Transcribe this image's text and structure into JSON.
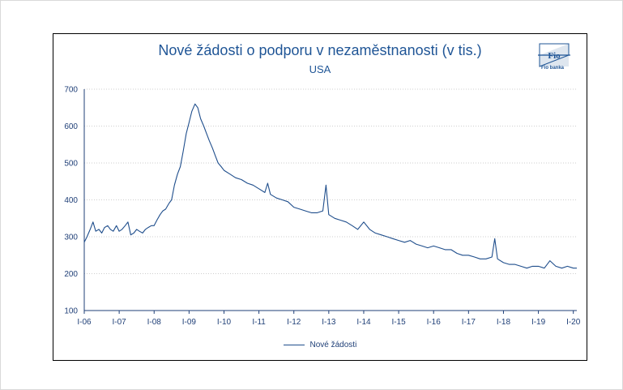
{
  "chart_data": {
    "type": "line",
    "title": "Nové žádosti o podporu v nezaměstnanosti (v tis.)",
    "subtitle": "USA",
    "xlabel": "",
    "ylabel": "",
    "ylim": [
      100,
      700
    ],
    "yticks": [
      100,
      200,
      300,
      400,
      500,
      600,
      700
    ],
    "xticks": [
      "I-06",
      "I-07",
      "I-08",
      "I-09",
      "I-10",
      "I-11",
      "I-12",
      "I-13",
      "I-14",
      "I-15",
      "I-16",
      "I-17",
      "I-18",
      "I-19",
      "I-20"
    ],
    "grid": "horizontal-dotted",
    "legend": "bottom",
    "series": [
      {
        "name": "Nové žádosti",
        "color": "#1f4e8c",
        "x": [
          2006.0,
          2006.08,
          2006.17,
          2006.25,
          2006.33,
          2006.42,
          2006.5,
          2006.58,
          2006.67,
          2006.75,
          2006.83,
          2006.92,
          2007.0,
          2007.08,
          2007.17,
          2007.25,
          2007.33,
          2007.42,
          2007.5,
          2007.58,
          2007.67,
          2007.75,
          2007.83,
          2007.92,
          2008.0,
          2008.08,
          2008.17,
          2008.25,
          2008.33,
          2008.42,
          2008.5,
          2008.58,
          2008.67,
          2008.75,
          2008.83,
          2008.92,
          2009.0,
          2009.08,
          2009.17,
          2009.25,
          2009.33,
          2009.42,
          2009.5,
          2009.58,
          2009.67,
          2009.75,
          2009.83,
          2009.92,
          2010.0,
          2010.17,
          2010.33,
          2010.5,
          2010.67,
          2010.83,
          2011.0,
          2011.17,
          2011.25,
          2011.33,
          2011.5,
          2011.67,
          2011.83,
          2012.0,
          2012.17,
          2012.33,
          2012.5,
          2012.67,
          2012.83,
          2012.92,
          2013.0,
          2013.17,
          2013.33,
          2013.5,
          2013.67,
          2013.83,
          2014.0,
          2014.17,
          2014.33,
          2014.5,
          2014.67,
          2014.83,
          2015.0,
          2015.17,
          2015.33,
          2015.5,
          2015.67,
          2015.83,
          2016.0,
          2016.17,
          2016.33,
          2016.5,
          2016.67,
          2016.83,
          2017.0,
          2017.17,
          2017.33,
          2017.5,
          2017.67,
          2017.75,
          2017.83,
          2018.0,
          2018.17,
          2018.33,
          2018.5,
          2018.67,
          2018.83,
          2019.0,
          2019.17,
          2019.33,
          2019.5,
          2019.67,
          2019.83,
          2020.0,
          2020.1
        ],
        "values": [
          285,
          300,
          320,
          340,
          315,
          320,
          310,
          325,
          330,
          320,
          315,
          330,
          315,
          320,
          330,
          340,
          305,
          310,
          320,
          315,
          310,
          320,
          325,
          330,
          330,
          345,
          360,
          370,
          375,
          390,
          400,
          440,
          470,
          490,
          530,
          580,
          610,
          640,
          660,
          650,
          620,
          600,
          580,
          560,
          540,
          520,
          500,
          490,
          480,
          470,
          460,
          455,
          445,
          440,
          430,
          420,
          445,
          415,
          405,
          400,
          395,
          380,
          375,
          370,
          365,
          365,
          370,
          440,
          360,
          350,
          345,
          340,
          330,
          320,
          340,
          320,
          310,
          305,
          300,
          295,
          290,
          285,
          290,
          280,
          275,
          270,
          275,
          270,
          265,
          265,
          255,
          250,
          250,
          245,
          240,
          240,
          245,
          295,
          240,
          230,
          225,
          225,
          220,
          215,
          220,
          220,
          215,
          235,
          220,
          215,
          220,
          215,
          215
        ]
      }
    ]
  },
  "logo": {
    "glyph": "Fio",
    "caption": "Fio banka"
  }
}
